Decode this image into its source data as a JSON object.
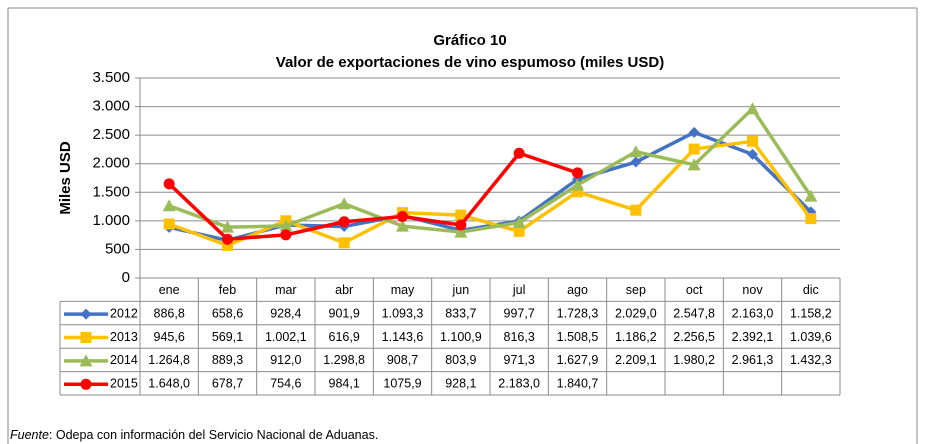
{
  "chart_data": {
    "type": "line",
    "title": "Gráfico 10",
    "subtitle": "Valor de exportaciones de vino espumoso (miles USD)",
    "y_label": "Miles USD",
    "categories": [
      "ene",
      "feb",
      "mar",
      "abr",
      "may",
      "jun",
      "jul",
      "ago",
      "sep",
      "oct",
      "nov",
      "dic"
    ],
    "ylim": [
      0,
      3500
    ],
    "yticks": [
      0,
      {
        "value": 500,
        "label": "500"
      },
      {
        "value": 1000,
        "label": "1.000"
      },
      {
        "value": 1500,
        "label": "1.500"
      },
      {
        "value": 2000,
        "label": "2.000"
      },
      {
        "value": 2500,
        "label": "2.500"
      },
      {
        "value": 3000,
        "label": "3.000"
      },
      {
        "value": 3500,
        "label": "3.500"
      }
    ],
    "grid": true,
    "series": [
      {
        "name": "2012",
        "color": "#4472c4",
        "marker": "diamond",
        "values": [
          886.8,
          658.6,
          928.4,
          901.9,
          1093.3,
          833.7,
          997.7,
          1728.3,
          2029.0,
          2547.8,
          2163.0,
          1158.2
        ],
        "value_labels": [
          "886,8",
          "658,6",
          "928,4",
          "901,9",
          "1.093,3",
          "833,7",
          "997,7",
          "1.728,3",
          "2.029,0",
          "2.547,8",
          "2.163,0",
          "1.158,2"
        ]
      },
      {
        "name": "2013",
        "color": "#ffc000",
        "marker": "square",
        "values": [
          945.6,
          569.1,
          1002.1,
          616.9,
          1143.6,
          1100.9,
          816.3,
          1508.5,
          1186.2,
          2256.5,
          2392.1,
          1039.6
        ],
        "value_labels": [
          "945,6",
          "569,1",
          "1.002,1",
          "616,9",
          "1.143,6",
          "1.100,9",
          "816,3",
          "1.508,5",
          "1.186,2",
          "2.256,5",
          "2.392,1",
          "1.039,6"
        ]
      },
      {
        "name": "2014",
        "color": "#9bbb59",
        "marker": "triangle",
        "values": [
          1264.8,
          889.3,
          912.0,
          1298.8,
          908.7,
          803.9,
          971.3,
          1627.9,
          2209.1,
          1980.2,
          2961.3,
          1432.3
        ],
        "value_labels": [
          "1.264,8",
          "889,3",
          "912,0",
          "1.298,8",
          "908,7",
          "803,9",
          "971,3",
          "1.627,9",
          "2.209,1",
          "1.980,2",
          "2.961,3",
          "1.432,3"
        ]
      },
      {
        "name": "2015",
        "color": "#ff0000",
        "marker": "circle",
        "values": [
          1648.0,
          678.7,
          754.6,
          984.1,
          1075.9,
          928.1,
          2183.0,
          1840.7,
          null,
          null,
          null,
          null
        ],
        "value_labels": [
          "1.648,0",
          "678,7",
          "754,6",
          "984,1",
          "1075,9",
          "928,1",
          "2.183,0",
          "1.840,7",
          null,
          null,
          null,
          null
        ]
      }
    ],
    "source_label": "Fuente",
    "source_text": ": Odepa con información del Servicio Nacional de Aduanas."
  }
}
